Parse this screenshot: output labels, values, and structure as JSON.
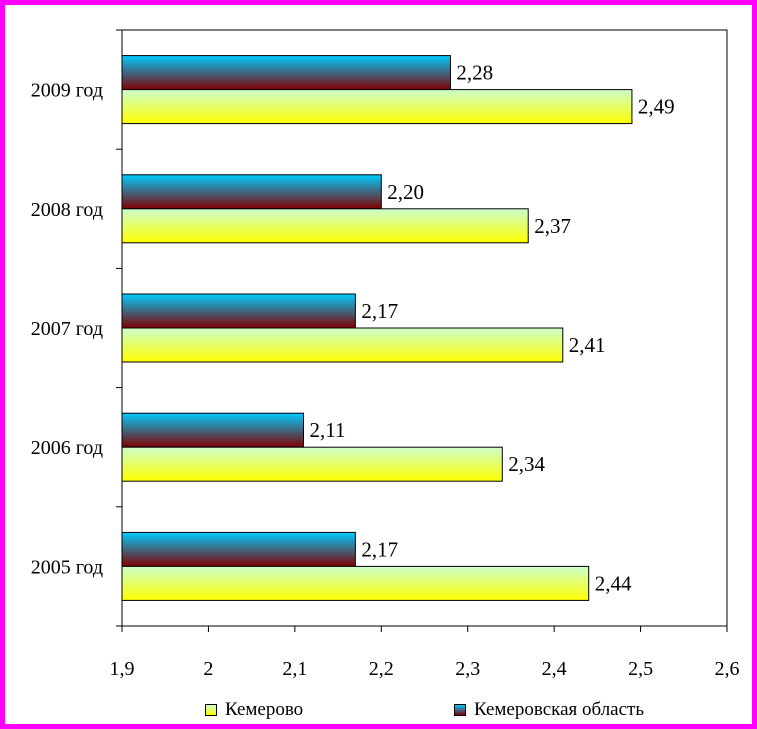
{
  "chart_data": {
    "type": "bar",
    "orientation": "horizontal",
    "categories": [
      "2005 год",
      "2006 год",
      "2007 год",
      "2008 год",
      "2009 год"
    ],
    "series": [
      {
        "name": "Кемерово",
        "values": [
          2.44,
          2.34,
          2.41,
          2.37,
          2.49
        ],
        "labels": [
          "2,44",
          "2,34",
          "2,41",
          "2,37",
          "2,49"
        ]
      },
      {
        "name": "Кемеровская область",
        "values": [
          2.17,
          2.11,
          2.17,
          2.2,
          2.28
        ],
        "labels": [
          "2,17",
          "2,11",
          "2,17",
          "2,20",
          "2,28"
        ]
      }
    ],
    "xlim": [
      1.9,
      2.6
    ],
    "xticks": [
      "1,9",
      "2",
      "2,1",
      "2,2",
      "2,3",
      "2,4",
      "2,5",
      "2,6"
    ],
    "grid": false,
    "legend": "bottom",
    "colors": {
      "series1": {
        "top": "#ccffcc",
        "bottom": "#ffff00"
      },
      "series2": {
        "top": "#00ccff",
        "bottom": "#800000"
      },
      "frame": "#ff00ff"
    }
  }
}
